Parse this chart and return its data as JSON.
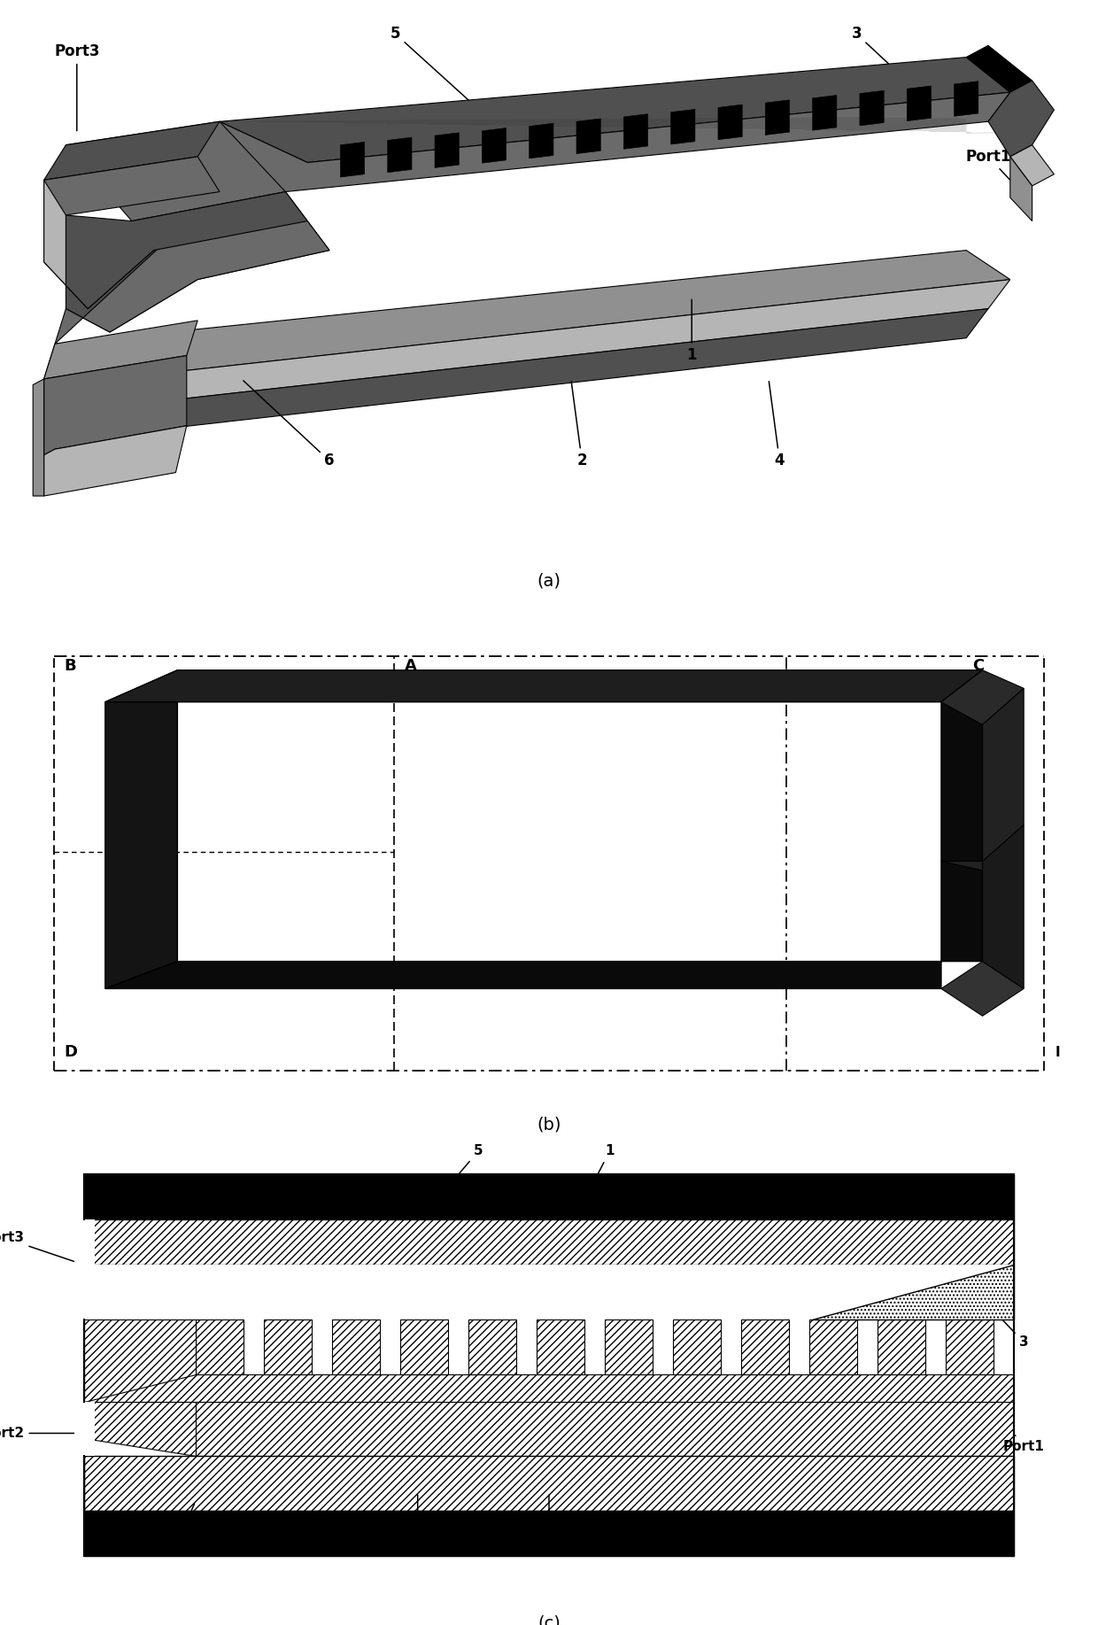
{
  "figure_width": 12.4,
  "figure_height": 18.35,
  "bg_color": "#ffffff",
  "panel_a_label": "(a)",
  "panel_b_label": "(b)",
  "panel_c_label": "(c)",
  "gray_dark": "#2a2a2a",
  "gray_med": "#4a4a4a",
  "gray_light": "#888888",
  "gray_lighter": "#aaaaaa",
  "gray_texture": "#666666"
}
